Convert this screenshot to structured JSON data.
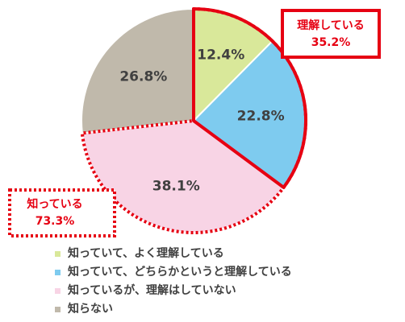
{
  "chart_data": {
    "type": "pie",
    "start_angle_deg": 0,
    "direction": "clockwise",
    "slices": [
      {
        "name": "知っていて、よく理解している",
        "value": 12.4,
        "label": "12.4%",
        "color": "#d9e89a"
      },
      {
        "name": "知っていて、どちらかというと理解している",
        "value": 22.8,
        "label": "22.8%",
        "color": "#7ecbef"
      },
      {
        "name": "知っているが、理解はしていない",
        "value": 38.1,
        "label": "38.1%",
        "color": "#f8d4e5"
      },
      {
        "name": "知らない",
        "value": 26.8,
        "label": "26.8%",
        "color": "#c0b9ab"
      }
    ],
    "annotations": [
      {
        "title": "理解している",
        "value": "35.2%",
        "border": "solid",
        "covers": [
          0,
          1
        ]
      },
      {
        "title": "知っている",
        "value": "73.3%",
        "border": "dotted",
        "covers": [
          0,
          1,
          2
        ]
      }
    ],
    "legend_position": "bottom-left",
    "highlight_color": "#e60012"
  }
}
